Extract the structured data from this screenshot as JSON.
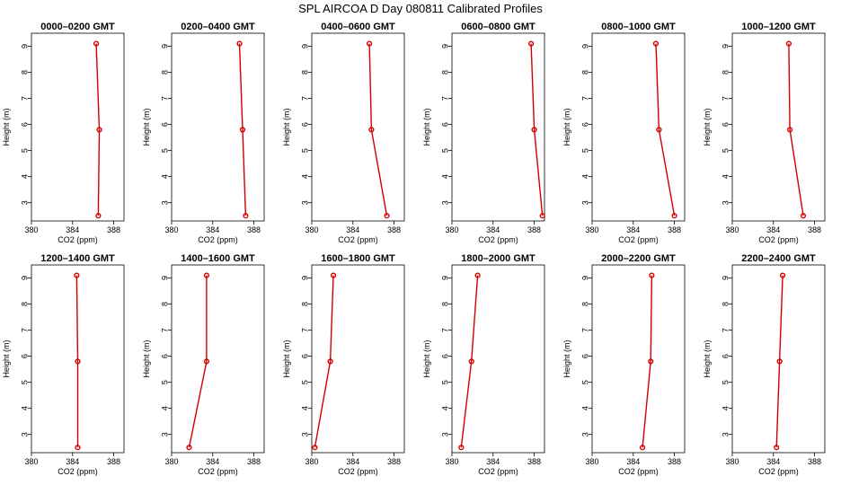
{
  "title": "SPL AIRCOA D  Day 080811  Calibrated Profiles",
  "chart_data": {
    "type": "line",
    "xlabel": "CO2 (ppm)",
    "ylabel": "Height (m)",
    "xlim": [
      380,
      389
    ],
    "ylim": [
      2.3,
      9.5
    ],
    "xticks": [
      380,
      384,
      388
    ],
    "yticks": [
      3,
      4,
      5,
      6,
      7,
      8,
      9
    ],
    "heights": [
      2.5,
      5.8,
      9.1
    ],
    "color": "#d40000",
    "panels": [
      {
        "title": "0000–0200 GMT",
        "co2": [
          386.5,
          386.6,
          386.3
        ]
      },
      {
        "title": "0200–0400 GMT",
        "co2": [
          387.2,
          386.9,
          386.6
        ]
      },
      {
        "title": "0400–0600 GMT",
        "co2": [
          387.3,
          385.8,
          385.6
        ]
      },
      {
        "title": "0600–0800 GMT",
        "co2": [
          388.8,
          388.0,
          387.7
        ]
      },
      {
        "title": "0800–1000 GMT",
        "co2": [
          388.0,
          386.5,
          386.2
        ]
      },
      {
        "title": "1000–1200 GMT",
        "co2": [
          386.9,
          385.6,
          385.5
        ]
      },
      {
        "title": "1200–1400 GMT",
        "co2": [
          384.5,
          384.5,
          384.4
        ]
      },
      {
        "title": "1400–1600 GMT",
        "co2": [
          381.7,
          383.4,
          383.4
        ]
      },
      {
        "title": "1600–1800 GMT",
        "co2": [
          380.3,
          381.8,
          382.1
        ]
      },
      {
        "title": "1800–2000 GMT",
        "co2": [
          380.9,
          381.9,
          382.5
        ]
      },
      {
        "title": "2000–2200 GMT",
        "co2": [
          384.9,
          385.7,
          385.8
        ]
      },
      {
        "title": "2200–2400 GMT",
        "co2": [
          384.3,
          384.6,
          384.9
        ]
      }
    ]
  }
}
